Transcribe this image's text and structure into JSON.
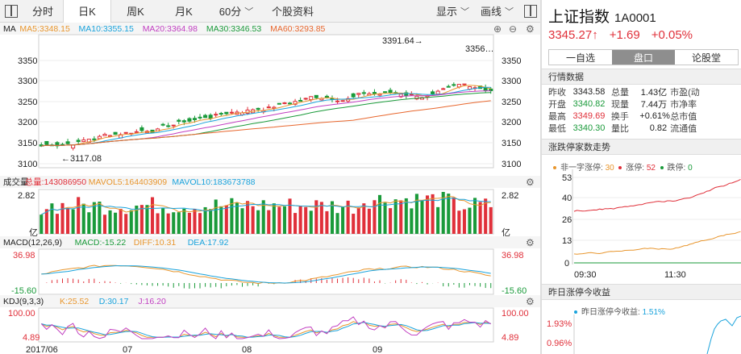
{
  "toolbar": {
    "tabs": [
      {
        "label": "分时",
        "active": false,
        "has_menu": false
      },
      {
        "label": "日K",
        "active": true,
        "has_menu": false
      },
      {
        "label": "周K",
        "active": false,
        "has_menu": false
      },
      {
        "label": "月K",
        "active": false,
        "has_menu": false
      },
      {
        "label": "60分",
        "active": false,
        "has_menu": true
      },
      {
        "label": "个股资料",
        "active": false,
        "has_menu": false
      }
    ],
    "view_label": "显示",
    "draw_label": "画线",
    "left_icon": "panel-toggle-icon",
    "right_icon": "panel-toggle-icon"
  },
  "kline": {
    "ma_label": "MA",
    "ma_items": [
      {
        "label": "MA5:3348.15",
        "color": "#e8962e"
      },
      {
        "label": "MA10:3355.15",
        "color": "#1aa3dc"
      },
      {
        "label": "MA20:3364.98",
        "color": "#c13fc1"
      },
      {
        "label": "MA30:3346.53",
        "color": "#1a9a3a"
      },
      {
        "label": "MA60:3293.85",
        "color": "#e8672e"
      }
    ],
    "y_ticks": [
      "3350",
      "3300",
      "3250",
      "3200",
      "3150",
      "3100"
    ],
    "high_label": "3391.64→",
    "low_label": "←3117.08",
    "last_label": "3356…",
    "x_ticks": [
      "2017/06",
      "07",
      "08",
      "09"
    ]
  },
  "volume": {
    "title": "成交量",
    "items": [
      {
        "label": "总量:143086950",
        "color": "#e0303a"
      },
      {
        "label": "MAVOL5:164403909",
        "color": "#e8962e"
      },
      {
        "label": "MAVOL10:183673788",
        "color": "#1aa3dc"
      }
    ],
    "top_tick": "2.82",
    "bottom_tick": "亿"
  },
  "macd": {
    "title": "MACD(12,26,9)",
    "items": [
      {
        "label": "MACD:-15.22",
        "color": "#1a9a3a"
      },
      {
        "label": "DIFF:10.31",
        "color": "#e8962e"
      },
      {
        "label": "DEA:17.92",
        "color": "#1aa3dc"
      }
    ],
    "top_tick": "36.98",
    "bottom_tick": "-15.60"
  },
  "kdj": {
    "title": "KDJ(9,3,3)",
    "items": [
      {
        "label": "K:25.52",
        "color": "#e8962e"
      },
      {
        "label": "D:30.17",
        "color": "#1aa3dc"
      },
      {
        "label": "J:16.20",
        "color": "#c13fc1"
      }
    ],
    "top_tick": "100.00",
    "bottom_tick": "4.89"
  },
  "quote": {
    "name": "上证指数",
    "code": "1A0001",
    "price": "3345.27↑",
    "change": "+1.69",
    "pct": "+0.05%"
  },
  "right_tabs": [
    {
      "label": "一自选",
      "active": false
    },
    {
      "label": "盘口",
      "active": true
    },
    {
      "label": "论股堂",
      "active": false
    }
  ],
  "market_header": "行情数据",
  "stats": [
    [
      "昨收",
      "3343.58",
      "总量",
      "1.43亿",
      "市盈(动"
    ],
    [
      "开盘",
      "3340.82",
      "现量",
      "7.44万",
      "市净率"
    ],
    [
      "最高",
      "3349.69",
      "换手",
      "+0.61%",
      "总市值"
    ],
    [
      "最低",
      "3340.30",
      "量比",
      "0.82",
      "流通值"
    ]
  ],
  "limit_header": "涨跌停家数走势",
  "limit_legend": [
    {
      "label": "非一字涨停:",
      "value": "30",
      "color": "#e8962e"
    },
    {
      "label": "涨停:",
      "value": "52",
      "color": "#e0303a"
    },
    {
      "label": "跌停:",
      "value": "0",
      "color": "#1a9a3a"
    }
  ],
  "limit_y_ticks": [
    "53",
    "40",
    "26",
    "13",
    "0"
  ],
  "limit_x_ticks": [
    "09:30",
    "11:30"
  ],
  "income_header": "昨日涨停今收益",
  "income_legend": {
    "label": "昨日涨停今收益:",
    "value": "1.51%",
    "color": "#1aa3dc"
  },
  "income_y_ticks": [
    "1.93%",
    "0.96%"
  ],
  "colors": {
    "up": "#e0303a",
    "down": "#1a9a3a"
  }
}
